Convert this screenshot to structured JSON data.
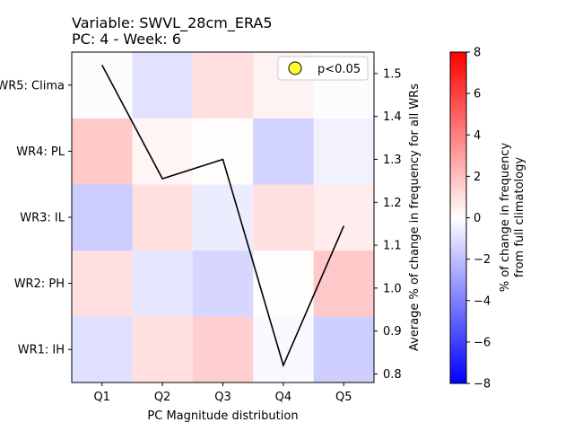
{
  "chart_data": {
    "type": "heatmap",
    "title_line1": "Variable: SWVL_28cm_ERA5",
    "title_line2": "PC: 4 - Week: 6",
    "xlabel": "PC Magnitude distribution",
    "ylabel_right": "Average % of change in frequency for all WRs",
    "colorbar_label_line1": "% of change in frequency",
    "colorbar_label_line2": "from full climatology",
    "x_categories": [
      "Q1",
      "Q2",
      "Q3",
      "Q4",
      "Q5"
    ],
    "y_categories": [
      "WR1: IH",
      "WR2: PH",
      "WR3: IL",
      "WR4: PL",
      "WR5: Clima"
    ],
    "heatmap_values": [
      [
        -1.0,
        1.0,
        1.5,
        -0.2,
        -1.5
      ],
      [
        1.0,
        -0.8,
        -1.3,
        0.1,
        1.7
      ],
      [
        -1.6,
        1.0,
        -0.6,
        1.0,
        0.6
      ],
      [
        1.7,
        0.3,
        0.1,
        -1.4,
        -0.4
      ],
      [
        -0.1,
        -0.9,
        1.0,
        0.4,
        -0.1
      ]
    ],
    "color_range": [
      -8,
      8
    ],
    "colormap": [
      "#0000ff",
      "#ffffff",
      "#ff0000"
    ],
    "colorbar_ticks": [
      "8",
      "6",
      "4",
      "2",
      "0",
      "−2",
      "−4",
      "−6",
      "−8"
    ],
    "line_series": {
      "x": [
        "Q1",
        "Q2",
        "Q3",
        "Q4",
        "Q5"
      ],
      "values": [
        1.52,
        1.255,
        1.3,
        0.82,
        1.145
      ],
      "color": "#000000"
    },
    "right_axis": {
      "ylim": [
        0.78,
        1.55
      ],
      "ticks": [
        "0.8",
        "0.9",
        "1.0",
        "1.1",
        "1.2",
        "1.3",
        "1.4",
        "1.5"
      ]
    },
    "legend": {
      "label": "p<0.05",
      "marker_color": "#ffff33",
      "position": "top-right"
    }
  }
}
